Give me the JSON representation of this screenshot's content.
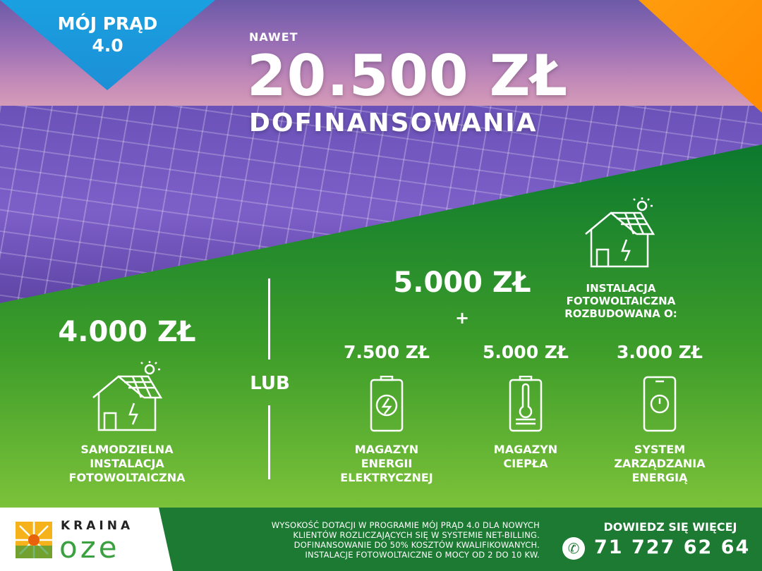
{
  "badge": {
    "line1": "MÓJ PRĄD",
    "line2": "4.0"
  },
  "headline": {
    "pre": "NAWET",
    "amount": "20.500 ZŁ",
    "post": "DOFINANSOWANIA"
  },
  "left_option": {
    "amount": "4.000 ZŁ",
    "label": [
      "SAMODZIELNA",
      "INSTALACJA",
      "FOTOWOLTAICZNA"
    ],
    "icon": "solar-house-icon"
  },
  "divider": {
    "label": "LUB"
  },
  "right_option": {
    "amount": "5.000 ZŁ",
    "plus": "+",
    "label": [
      "INSTALACJA",
      "FOTOWOLTAICZNA",
      "ROZBUDOWANA O:"
    ],
    "icon": "solar-house-icon",
    "addons": [
      {
        "amount": "7.500 ZŁ",
        "label": [
          "MAGAZYN",
          "ENERGII",
          "ELEKTRYCZNEJ"
        ],
        "icon": "battery-bolt-icon"
      },
      {
        "amount": "5.000 ZŁ",
        "label": [
          "MAGAZYN",
          "CIEPŁA"
        ],
        "icon": "thermometer-storage-icon"
      },
      {
        "amount": "3.000 ZŁ",
        "label": [
          "SYSTEM",
          "ZARZĄDZANIA",
          "ENERGIĄ"
        ],
        "icon": "smartphone-power-icon"
      }
    ]
  },
  "footer": {
    "logo": {
      "top": "KRAINA",
      "bottom": "oze"
    },
    "disclaimer": [
      "WYSOKOŚĆ DOTACJI W PROGRAMIE MÓJ PRĄD 4.0 DLA NOWYCH",
      "KLIENTÓW ROZLICZAJĄCYCH SIĘ W SYSTEMIE NET-BILLING.",
      "DOFINANSOWANIE DO 50% KOSZTÓW KWALIFIKOWANYCH.",
      "INSTALACJE FOTOWOLTAICZNE O MOCY OD 2 DO 10 KW."
    ],
    "cta": "DOWIEDZ SIĘ WIĘCEJ",
    "phone": "71 727 62 64"
  },
  "colors": {
    "green": "#0d7a2e",
    "blue": "#1aa0e0",
    "orange": "#ff8a00",
    "footer": "#1d7a33"
  }
}
